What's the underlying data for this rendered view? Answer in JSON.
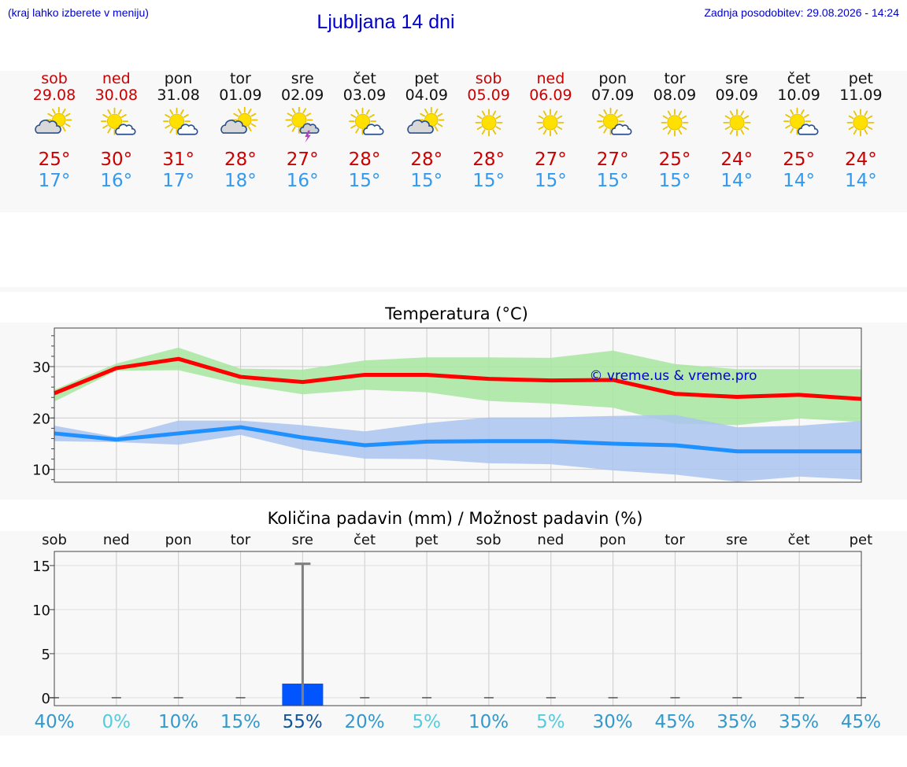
{
  "header": {
    "hint": "(kraj lahko izberete v meniju)",
    "title": "Ljubljana 14 dni",
    "updated": "Zadnja posodobitev: 29.08.2026 - 14:24"
  },
  "colors": {
    "weekend": "#cc0000",
    "max_line": "#ff0000",
    "max_band": "#a8e6a0",
    "min_line": "#1e90ff",
    "min_band": "#aac4f0",
    "bar": "#0055ff"
  },
  "days": [
    {
      "name": "sob",
      "date": "29.08",
      "weekend": true,
      "icon": "sun-cloud-icon",
      "max": "25°",
      "min": "17°",
      "prob": "40%",
      "prob_color": "#3399cc"
    },
    {
      "name": "ned",
      "date": "30.08",
      "weekend": true,
      "icon": "sun-cloud-small-icon",
      "max": "30°",
      "min": "16°",
      "prob": "0%",
      "prob_color": "#55ccdd"
    },
    {
      "name": "pon",
      "date": "31.08",
      "weekend": false,
      "icon": "sun-cloud-small-icon",
      "max": "31°",
      "min": "17°",
      "prob": "10%",
      "prob_color": "#3399cc"
    },
    {
      "name": "tor",
      "date": "01.09",
      "weekend": false,
      "icon": "sun-cloud-icon",
      "max": "28°",
      "min": "18°",
      "prob": "15%",
      "prob_color": "#3399cc"
    },
    {
      "name": "sre",
      "date": "02.09",
      "weekend": false,
      "icon": "sun-storm-icon",
      "max": "27°",
      "min": "16°",
      "prob": "55%",
      "prob_color": "#115599"
    },
    {
      "name": "čet",
      "date": "03.09",
      "weekend": false,
      "icon": "sun-cloud-small-icon",
      "max": "28°",
      "min": "15°",
      "prob": "20%",
      "prob_color": "#3399cc"
    },
    {
      "name": "pet",
      "date": "04.09",
      "weekend": false,
      "icon": "sun-cloud-icon",
      "max": "28°",
      "min": "15°",
      "prob": "5%",
      "prob_color": "#55ccdd"
    },
    {
      "name": "sob",
      "date": "05.09",
      "weekend": true,
      "icon": "sun-icon",
      "max": "28°",
      "min": "15°",
      "prob": "10%",
      "prob_color": "#3399cc"
    },
    {
      "name": "ned",
      "date": "06.09",
      "weekend": true,
      "icon": "sun-icon",
      "max": "27°",
      "min": "15°",
      "prob": "5%",
      "prob_color": "#55ccdd"
    },
    {
      "name": "pon",
      "date": "07.09",
      "weekend": false,
      "icon": "sun-cloud-small-icon",
      "max": "27°",
      "min": "15°",
      "prob": "30%",
      "prob_color": "#3399cc"
    },
    {
      "name": "tor",
      "date": "08.09",
      "weekend": false,
      "icon": "sun-icon",
      "max": "25°",
      "min": "15°",
      "prob": "45%",
      "prob_color": "#3399cc"
    },
    {
      "name": "sre",
      "date": "09.09",
      "weekend": false,
      "icon": "sun-icon",
      "max": "24°",
      "min": "14°",
      "prob": "35%",
      "prob_color": "#3399cc"
    },
    {
      "name": "čet",
      "date": "10.09",
      "weekend": false,
      "icon": "sun-cloud-small-icon",
      "max": "25°",
      "min": "14°",
      "prob": "35%",
      "prob_color": "#3399cc"
    },
    {
      "name": "pet",
      "date": "11.09",
      "weekend": false,
      "icon": "sun-icon",
      "max": "24°",
      "min": "14°",
      "prob": "45%",
      "prob_color": "#3399cc"
    }
  ],
  "chart_data": [
    {
      "type": "line",
      "title": "Temperatura (°C)",
      "watermark": "© vreme.us & vreme.pro",
      "x": [
        0,
        1,
        2,
        3,
        4,
        5,
        6,
        7,
        8,
        9,
        10,
        11,
        12,
        13
      ],
      "ylim": [
        7.5,
        37.5
      ],
      "yticks": [
        10,
        20,
        30
      ],
      "grid": true,
      "series": [
        {
          "role": "max",
          "values": [
            24.8,
            29.7,
            31.5,
            28.0,
            27.0,
            28.4,
            28.4,
            27.6,
            27.3,
            27.4,
            24.7,
            24.1,
            24.5,
            23.7
          ]
        },
        {
          "role": "min",
          "values": [
            17.0,
            15.8,
            17.0,
            18.2,
            16.2,
            14.7,
            15.4,
            15.5,
            15.5,
            15.0,
            14.7,
            13.5,
            13.5,
            13.5
          ]
        }
      ],
      "bands": [
        {
          "role": "max_range",
          "low": [
            23.2,
            29.2,
            29.3,
            26.5,
            24.6,
            25.5,
            25.0,
            23.3,
            22.8,
            22.0,
            18.9,
            18.6,
            19.9,
            19.2
          ],
          "high": [
            25.5,
            30.6,
            33.7,
            29.6,
            29.4,
            31.2,
            31.8,
            31.8,
            31.7,
            33.1,
            30.5,
            29.5,
            29.5,
            29.5
          ]
        },
        {
          "role": "min_range",
          "low": [
            15.5,
            15.3,
            14.8,
            16.7,
            13.8,
            12.1,
            12.0,
            11.2,
            11.0,
            9.8,
            9.0,
            7.6,
            8.6,
            8.0
          ],
          "high": [
            18.5,
            16.3,
            19.5,
            19.5,
            18.6,
            17.4,
            19.0,
            20.1,
            20.1,
            20.4,
            20.6,
            18.2,
            18.5,
            19.4
          ]
        }
      ]
    },
    {
      "type": "bar",
      "title": "Količina padavin (mm) / Možnost padavin (%)",
      "categories": [
        "sob",
        "ned",
        "pon",
        "tor",
        "sre",
        "čet",
        "pet",
        "sob",
        "ned",
        "pon",
        "tor",
        "sre",
        "čet",
        "pet"
      ],
      "values": [
        0,
        0,
        0,
        0,
        1.6,
        0,
        0,
        0,
        0,
        0,
        0,
        0,
        0,
        0
      ],
      "error_high": [
        0,
        0,
        0,
        0,
        15.2,
        0,
        0,
        0,
        0,
        0,
        0,
        0,
        0,
        0
      ],
      "ylim": [
        -0.9,
        16.6
      ],
      "yticks": [
        0,
        5,
        10,
        15
      ],
      "probabilities": [
        "40%",
        "0%",
        "10%",
        "15%",
        "55%",
        "20%",
        "5%",
        "10%",
        "5%",
        "30%",
        "45%",
        "35%",
        "35%",
        "45%"
      ],
      "grid": true
    }
  ]
}
